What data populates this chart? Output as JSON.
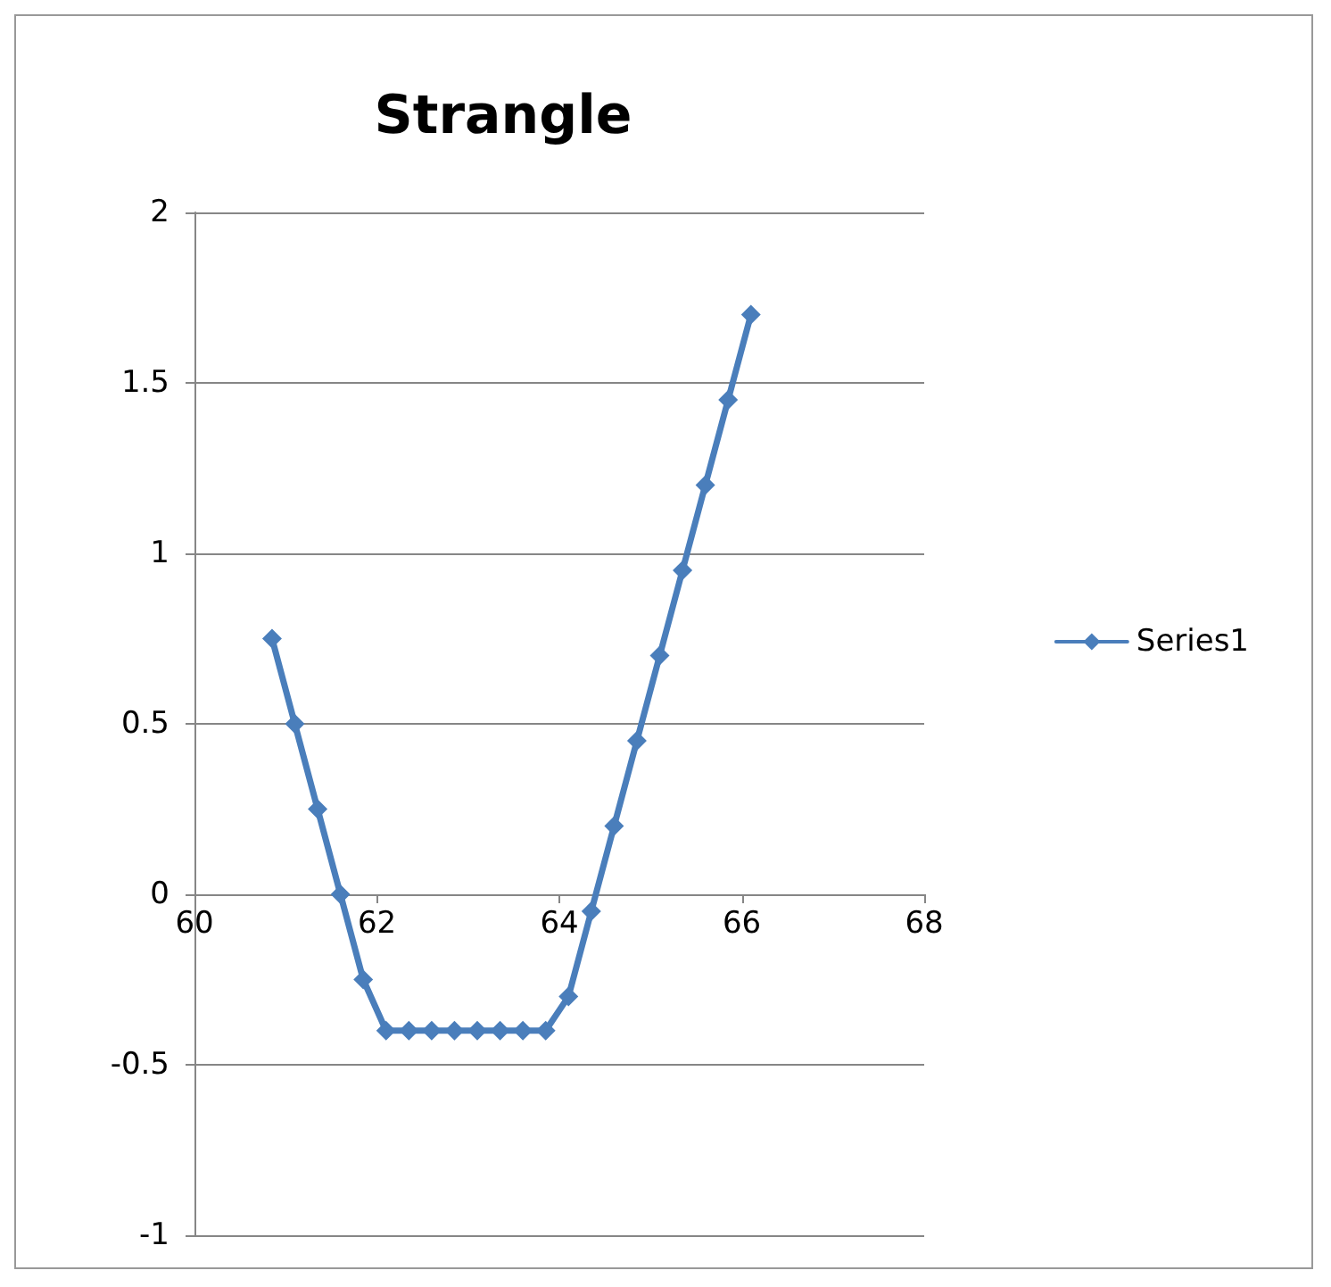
{
  "chart_data": {
    "type": "line",
    "title": "Strangle",
    "x": [
      60.85,
      61.1,
      61.35,
      61.6,
      61.85,
      62.1,
      62.35,
      62.6,
      62.85,
      63.1,
      63.35,
      63.6,
      63.85,
      64.1,
      64.35,
      64.6,
      64.85,
      65.1,
      65.35,
      65.6,
      65.85,
      66.1
    ],
    "series": [
      {
        "name": "Series1",
        "color": "#4a7ebb",
        "values": [
          0.75,
          0.5,
          0.25,
          0,
          -0.25,
          -0.4,
          -0.4,
          -0.4,
          -0.4,
          -0.4,
          -0.4,
          -0.4,
          -0.4,
          -0.3,
          -0.05,
          0.2,
          0.45,
          0.7,
          0.95,
          1.2,
          1.45,
          1.7
        ]
      }
    ],
    "xlim": [
      60,
      68
    ],
    "xticks": [
      60,
      62,
      64,
      66,
      68
    ],
    "ylim": [
      -1,
      2
    ],
    "yticks": [
      -1,
      -0.5,
      0,
      0.5,
      1,
      1.5,
      2
    ],
    "grid": "y",
    "legend": "right",
    "marker": "diamond",
    "line_style": "solid"
  }
}
